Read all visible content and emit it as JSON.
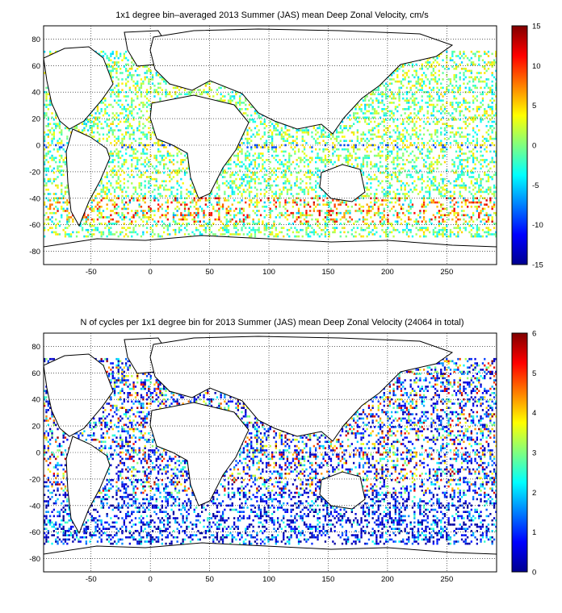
{
  "chart_data": [
    {
      "type": "heatmap",
      "title": "1x1 degree bin–averaged 2013 Summer (JAS) mean Deep Zonal Velocity, cm/s",
      "xlabel": "",
      "ylabel": "",
      "x_ticks": [
        "-50",
        "0",
        "50",
        "100",
        "150",
        "200",
        "250"
      ],
      "y_ticks": [
        "80",
        "60",
        "40",
        "20",
        "0",
        "-20",
        "-40",
        "-60",
        "-80"
      ],
      "xlim": [
        -90,
        292
      ],
      "ylim": [
        -90,
        90
      ],
      "grid": true,
      "colormap": "jet",
      "colorbar": {
        "range": [
          -15,
          15
        ],
        "ticks": [
          "15",
          "10",
          "5",
          "0",
          "-5",
          "-10",
          "-15"
        ]
      }
    },
    {
      "type": "heatmap",
      "title": "N of cycles per 1x1 degree bin for 2013 Summer (JAS) mean Deep Zonal Velocity (24064 in total)",
      "xlabel": "",
      "ylabel": "",
      "x_ticks": [
        "-50",
        "0",
        "50",
        "100",
        "150",
        "200",
        "250"
      ],
      "y_ticks": [
        "80",
        "60",
        "40",
        "20",
        "0",
        "-20",
        "-40",
        "-60",
        "-80"
      ],
      "xlim": [
        -90,
        292
      ],
      "ylim": [
        -90,
        90
      ],
      "grid": true,
      "colormap": "jet",
      "colorbar": {
        "range": [
          0,
          6
        ],
        "ticks": [
          "6",
          "5",
          "4",
          "3",
          "2",
          "1",
          "0"
        ]
      }
    }
  ]
}
